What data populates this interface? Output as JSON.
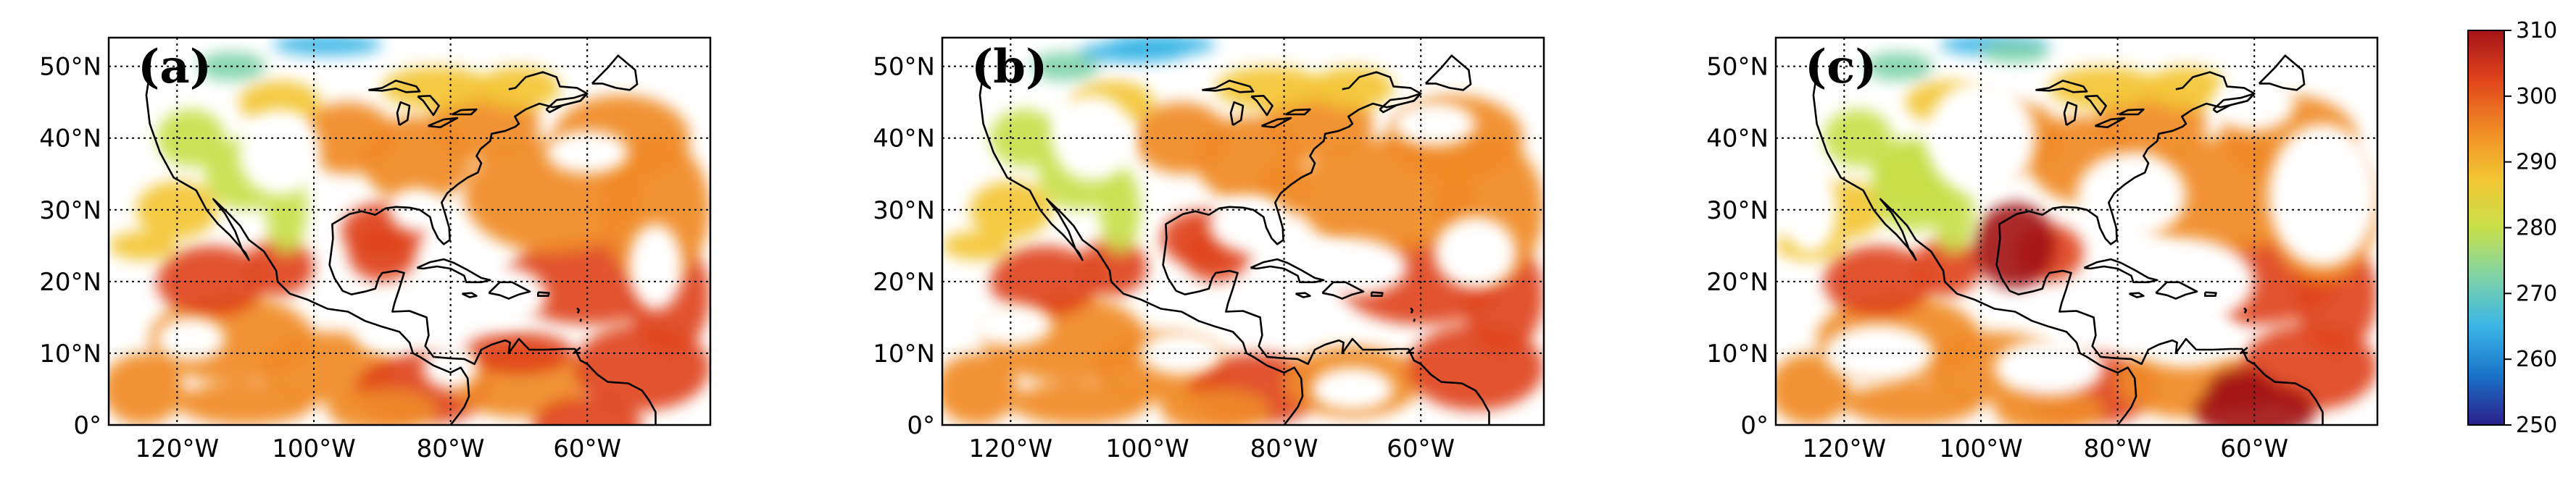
{
  "figure": {
    "panels": [
      {
        "id": "a",
        "label": "(a)"
      },
      {
        "id": "b",
        "label": "(b)"
      },
      {
        "id": "c",
        "label": "(c)"
      }
    ],
    "lat_ticks": [
      {
        "value": 50,
        "label": "50°N"
      },
      {
        "value": 40,
        "label": "40°N"
      },
      {
        "value": 30,
        "label": "30°N"
      },
      {
        "value": 20,
        "label": "20°N"
      },
      {
        "value": 10,
        "label": "10°N"
      },
      {
        "value": 0,
        "label": "0°"
      }
    ],
    "lon_ticks": [
      {
        "value": -120,
        "label": "120°W"
      },
      {
        "value": -100,
        "label": "100°W"
      },
      {
        "value": -80,
        "label": "80°W"
      },
      {
        "value": -60,
        "label": "60°W"
      }
    ],
    "extent": {
      "lon_min": -130,
      "lon_max": -42,
      "lat_min": 0,
      "lat_max": 54
    },
    "colorbar": {
      "min": 250,
      "max": 310,
      "ticks": [
        {
          "value": 310,
          "label": "310"
        },
        {
          "value": 300,
          "label": "300"
        },
        {
          "value": 290,
          "label": "290"
        },
        {
          "value": 280,
          "label": "280"
        },
        {
          "value": 270,
          "label": "270"
        },
        {
          "value": 260,
          "label": "260"
        },
        {
          "value": 250,
          "label": "250"
        }
      ],
      "colors": [
        "#2b1f8a",
        "#1a73c8",
        "#3ab5e6",
        "#7ed3a8",
        "#c8e04a",
        "#f3c533",
        "#f08a25",
        "#e0441c",
        "#a41418"
      ]
    }
  }
}
